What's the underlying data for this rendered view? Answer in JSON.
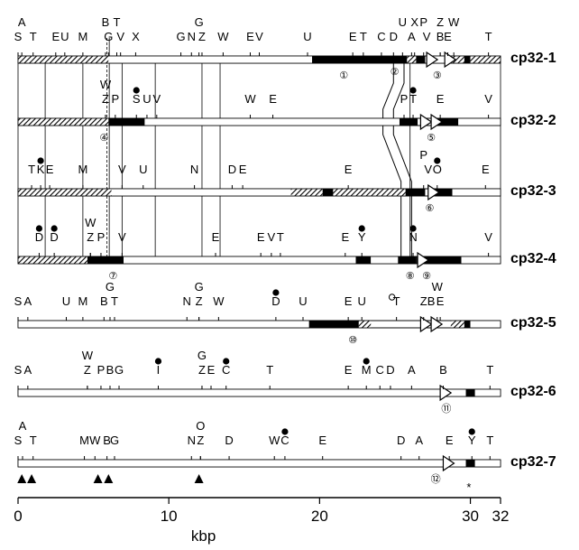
{
  "plasmids": [
    {
      "name": "cp32-1",
      "sites": [
        {
          "s": "A",
          "x": 0.25,
          "t": 1
        },
        {
          "s": "S",
          "x": 0,
          "t": 2
        },
        {
          "s": "T",
          "x": 1.0,
          "t": 2
        },
        {
          "s": "E",
          "x": 2.5,
          "t": 2
        },
        {
          "s": "U",
          "x": 3.1,
          "t": 2
        },
        {
          "s": "M",
          "x": 4.3,
          "t": 2
        },
        {
          "s": "B",
          "x": 5.8,
          "t": 1
        },
        {
          "s": "G",
          "x": 6.0,
          "t": 2
        },
        {
          "s": "T",
          "x": 6.55,
          "t": 1
        },
        {
          "s": "V",
          "x": 6.8,
          "t": 2
        },
        {
          "s": "X",
          "x": 7.8,
          "t": 2
        },
        {
          "s": "G",
          "x": 12.0,
          "t": 1
        },
        {
          "s": "G",
          "x": 10.8,
          "t": 2
        },
        {
          "s": "N",
          "x": 11.5,
          "t": 2
        },
        {
          "s": "Z",
          "x": 12.2,
          "t": 2
        },
        {
          "s": "W",
          "x": 13.6,
          "t": 2
        },
        {
          "s": "E",
          "x": 15.4,
          "t": 2
        },
        {
          "s": "V",
          "x": 16.0,
          "t": 2
        },
        {
          "s": "U",
          "x": 19.2,
          "t": 2
        },
        {
          "s": "E",
          "x": 22.2,
          "t": 2
        },
        {
          "s": "T",
          "x": 22.9,
          "t": 2
        },
        {
          "s": "C",
          "x": 24.1,
          "t": 2
        },
        {
          "s": "D",
          "x": 24.9,
          "t": 2
        },
        {
          "s": "U",
          "x": 25.5,
          "t": 1
        },
        {
          "s": "X",
          "x": 26.3,
          "t": 1
        },
        {
          "s": "A",
          "x": 26.1,
          "t": 2
        },
        {
          "s": "P",
          "x": 26.9,
          "t": 1
        },
        {
          "s": "V",
          "x": 27.1,
          "t": 2
        },
        {
          "s": "Z",
          "x": 28.0,
          "t": 1
        },
        {
          "s": "B",
          "x": 28.0,
          "t": 2
        },
        {
          "s": "E",
          "x": 28.5,
          "t": 2
        },
        {
          "s": "W",
          "x": 28.9,
          "t": 1
        },
        {
          "s": "T",
          "x": 31.2,
          "t": 2
        }
      ],
      "segs": [
        [
          0,
          6.0,
          "h"
        ],
        [
          6.0,
          19.5,
          "w"
        ],
        [
          19.5,
          25.8,
          "b"
        ],
        [
          25.8,
          26.4,
          "h"
        ],
        [
          26.4,
          27.0,
          "b"
        ],
        [
          27.4,
          28.6,
          "w"
        ],
        [
          28.6,
          29.6,
          "h"
        ],
        [
          29.6,
          30.0,
          "b"
        ],
        [
          30.0,
          32.0,
          "h"
        ]
      ],
      "arrows": [
        27.1,
        28.3
      ],
      "circled": [
        [
          "①",
          21.6
        ],
        [
          "③",
          27.8
        ]
      ]
    },
    {
      "name": "cp32-2",
      "sites": [
        {
          "s": "W",
          "x": 5.8,
          "t": 1
        },
        {
          "s": "Z",
          "x": 5.8,
          "t": 2
        },
        {
          "s": "P",
          "x": 6.45,
          "t": 2
        },
        {
          "s": "S",
          "x": 7.85,
          "t": 2,
          "dot": true
        },
        {
          "s": "U",
          "x": 8.55,
          "t": 2
        },
        {
          "s": "V",
          "x": 9.2,
          "t": 2
        },
        {
          "s": "W",
          "x": 15.4,
          "t": 2
        },
        {
          "s": "E",
          "x": 16.9,
          "t": 2
        },
        {
          "s": "P",
          "x": 25.6,
          "t": 2
        },
        {
          "s": "T",
          "x": 26.2,
          "t": 2,
          "dot": true
        },
        {
          "s": "E",
          "x": 28.0,
          "t": 2
        },
        {
          "s": "V",
          "x": 31.2,
          "t": 2
        }
      ],
      "segs": [
        [
          0,
          6.0,
          "h"
        ],
        [
          6.0,
          8.4,
          "b"
        ],
        [
          8.4,
          25.3,
          "w"
        ],
        [
          25.3,
          26.5,
          "b"
        ],
        [
          27.8,
          29.2,
          "b"
        ],
        [
          29.2,
          32.0,
          "w"
        ]
      ],
      "arrows": [
        26.7,
        27.4
      ],
      "circled": [
        [
          "④",
          5.7
        ],
        [
          "⑤",
          27.4
        ]
      ]
    },
    {
      "name": "cp32-3",
      "sites": [
        {
          "s": "T",
          "x": 0.9,
          "t": 2
        },
        {
          "s": "K",
          "x": 1.5,
          "t": 2,
          "dot": true
        },
        {
          "s": "E",
          "x": 2.1,
          "t": 2
        },
        {
          "s": "M",
          "x": 4.3,
          "t": 2
        },
        {
          "s": "V",
          "x": 6.9,
          "t": 2
        },
        {
          "s": "U",
          "x": 8.3,
          "t": 2
        },
        {
          "s": "N",
          "x": 11.7,
          "t": 2
        },
        {
          "s": "D",
          "x": 14.2,
          "t": 2
        },
        {
          "s": "E",
          "x": 14.9,
          "t": 2
        },
        {
          "s": "E",
          "x": 21.9,
          "t": 2
        },
        {
          "s": "P",
          "x": 26.9,
          "t": 1
        },
        {
          "s": "V",
          "x": 27.2,
          "t": 2
        },
        {
          "s": "O",
          "x": 27.8,
          "t": 2,
          "dot": true
        },
        {
          "s": "E",
          "x": 31.0,
          "t": 2
        }
      ],
      "segs": [
        [
          0,
          6.2,
          "h"
        ],
        [
          6.2,
          18.1,
          "w"
        ],
        [
          18.1,
          20.2,
          "h"
        ],
        [
          20.2,
          20.9,
          "b"
        ],
        [
          20.9,
          25.7,
          "h"
        ],
        [
          25.7,
          27.0,
          "b"
        ],
        [
          27.6,
          28.8,
          "b"
        ],
        [
          28.8,
          32.0,
          "w"
        ]
      ],
      "arrows": [
        27.2
      ],
      "circled": [
        [
          "⑥",
          27.3
        ]
      ]
    },
    {
      "name": "cp32-4",
      "sites": [
        {
          "s": "D",
          "x": 1.4,
          "t": 2,
          "dot": true
        },
        {
          "s": "D",
          "x": 2.4,
          "t": 2,
          "dot": true
        },
        {
          "s": "W",
          "x": 4.8,
          "t": 1
        },
        {
          "s": "Z",
          "x": 4.8,
          "t": 2
        },
        {
          "s": "P",
          "x": 5.5,
          "t": 2
        },
        {
          "s": "V",
          "x": 6.9,
          "t": 2
        },
        {
          "s": "E",
          "x": 13.1,
          "t": 2
        },
        {
          "s": "E",
          "x": 16.1,
          "t": 2
        },
        {
          "s": "V",
          "x": 16.8,
          "t": 2
        },
        {
          "s": "T",
          "x": 17.4,
          "t": 2
        },
        {
          "s": "E",
          "x": 21.7,
          "t": 2
        },
        {
          "s": "Y",
          "x": 22.8,
          "t": 2,
          "dot": true
        },
        {
          "s": "N",
          "x": 26.2,
          "t": 2,
          "dot": true
        },
        {
          "s": "V",
          "x": 31.2,
          "t": 2
        }
      ],
      "segs": [
        [
          0,
          4.6,
          "h"
        ],
        [
          4.6,
          7.0,
          "b"
        ],
        [
          7.0,
          22.4,
          "w"
        ],
        [
          22.4,
          23.4,
          "b"
        ],
        [
          23.4,
          25.2,
          "w"
        ],
        [
          25.2,
          26.4,
          "b"
        ],
        [
          26.4,
          29.4,
          "b"
        ],
        [
          29.4,
          32.0,
          "w"
        ]
      ],
      "arrows": [
        26.5
      ],
      "circled": [
        [
          "⑦",
          6.3
        ],
        [
          "⑧",
          26.0
        ],
        [
          "⑨",
          27.1
        ]
      ]
    },
    {
      "name": "cp32-5",
      "sites": [
        {
          "s": "S",
          "x": 0,
          "t": 2
        },
        {
          "s": "A",
          "x": 0.65,
          "t": 2
        },
        {
          "s": "U",
          "x": 3.2,
          "t": 2
        },
        {
          "s": "M",
          "x": 4.3,
          "t": 2
        },
        {
          "s": "B",
          "x": 5.7,
          "t": 2
        },
        {
          "s": "G",
          "x": 6.1,
          "t": 1
        },
        {
          "s": "T",
          "x": 6.4,
          "t": 2
        },
        {
          "s": "G",
          "x": 12.0,
          "t": 1
        },
        {
          "s": "N",
          "x": 11.2,
          "t": 2
        },
        {
          "s": "Z",
          "x": 12.0,
          "t": 2
        },
        {
          "s": "W",
          "x": 13.3,
          "t": 2
        },
        {
          "s": "D",
          "x": 17.1,
          "t": 2,
          "dot": true
        },
        {
          "s": "U",
          "x": 18.9,
          "t": 2
        },
        {
          "s": "E",
          "x": 21.9,
          "t": 2
        },
        {
          "s": "U",
          "x": 22.8,
          "t": 2
        },
        {
          "s": "T",
          "x": 25.1,
          "t": 2,
          "circle": true
        },
        {
          "s": "Z",
          "x": 26.9,
          "t": 2
        },
        {
          "s": "B",
          "x": 27.4,
          "t": 2
        },
        {
          "s": "E",
          "x": 28.0,
          "t": 2
        },
        {
          "s": "W",
          "x": 27.8,
          "t": 1
        }
      ],
      "segs": [
        [
          0,
          19.3,
          "w"
        ],
        [
          19.3,
          22.6,
          "b"
        ],
        [
          22.6,
          23.4,
          "h"
        ],
        [
          28.7,
          29.6,
          "h"
        ],
        [
          29.6,
          30.0,
          "b"
        ],
        [
          30.0,
          32.0,
          "w"
        ]
      ],
      "arrows": [
        26.7,
        27.4
      ],
      "circled": [
        [
          "⑩",
          22.2
        ]
      ]
    },
    {
      "name": "cp32-6",
      "sites": [
        {
          "s": "S",
          "x": 0,
          "t": 2
        },
        {
          "s": "A",
          "x": 0.65,
          "t": 2
        },
        {
          "s": "W",
          "x": 4.6,
          "t": 1
        },
        {
          "s": "Z",
          "x": 4.6,
          "t": 2
        },
        {
          "s": "P",
          "x": 5.5,
          "t": 2
        },
        {
          "s": "B",
          "x": 6.1,
          "t": 2
        },
        {
          "s": "G",
          "x": 6.7,
          "t": 2
        },
        {
          "s": "I",
          "x": 9.3,
          "t": 2,
          "dot": true
        },
        {
          "s": "G",
          "x": 12.2,
          "t": 1
        },
        {
          "s": "Z",
          "x": 12.2,
          "t": 2
        },
        {
          "s": "E",
          "x": 12.8,
          "t": 2
        },
        {
          "s": "C",
          "x": 13.8,
          "t": 2,
          "dot": true
        },
        {
          "s": "T",
          "x": 16.7,
          "t": 2
        },
        {
          "s": "E",
          "x": 21.9,
          "t": 2
        },
        {
          "s": "M",
          "x": 23.1,
          "t": 2,
          "dot": true
        },
        {
          "s": "C",
          "x": 24.0,
          "t": 2
        },
        {
          "s": "D",
          "x": 24.7,
          "t": 2
        },
        {
          "s": "A",
          "x": 26.1,
          "t": 2
        },
        {
          "s": "B",
          "x": 28.2,
          "t": 2
        },
        {
          "s": "T",
          "x": 31.3,
          "t": 2
        }
      ],
      "segs": [
        [
          0,
          32.0,
          "w"
        ],
        [
          29.7,
          30.3,
          "b"
        ]
      ],
      "arrows": [
        28.0
      ],
      "circled": [
        [
          "⑪",
          28.4
        ]
      ]
    },
    {
      "name": "cp32-7",
      "sites": [
        {
          "s": "A",
          "x": 0.3,
          "t": 1
        },
        {
          "s": "S",
          "x": 0,
          "t": 2
        },
        {
          "s": "T",
          "x": 1.0,
          "t": 2
        },
        {
          "s": "M",
          "x": 4.4,
          "t": 2
        },
        {
          "s": "W",
          "x": 5.1,
          "t": 2
        },
        {
          "s": "B",
          "x": 5.9,
          "t": 2
        },
        {
          "s": "G",
          "x": 6.4,
          "t": 2
        },
        {
          "s": "N",
          "x": 11.5,
          "t": 2
        },
        {
          "s": "Z",
          "x": 12.1,
          "t": 2
        },
        {
          "s": "O",
          "x": 12.1,
          "t": 1
        },
        {
          "s": "D",
          "x": 14.0,
          "t": 2
        },
        {
          "s": "W",
          "x": 17.0,
          "t": 2
        },
        {
          "s": "C",
          "x": 17.7,
          "t": 2,
          "dot": true
        },
        {
          "s": "E",
          "x": 20.2,
          "t": 2
        },
        {
          "s": "D",
          "x": 25.4,
          "t": 2
        },
        {
          "s": "A",
          "x": 26.6,
          "t": 2
        },
        {
          "s": "E",
          "x": 28.6,
          "t": 2
        },
        {
          "s": "Y",
          "x": 30.1,
          "t": 2,
          "dot": true
        },
        {
          "s": "T",
          "x": 31.3,
          "t": 2
        }
      ],
      "segs": [
        [
          0,
          32.0,
          "w"
        ],
        [
          29.7,
          30.3,
          "b"
        ]
      ],
      "arrows": [
        28.2
      ],
      "circled": [
        [
          "⑫",
          27.7
        ]
      ],
      "triangles": [
        0.25,
        0.9,
        5.3,
        6.0,
        12.0
      ],
      "asterisk": 29.9
    }
  ],
  "scale": {
    "ticks": [
      {
        "v": 0,
        "label": "0"
      },
      {
        "v": 10,
        "label": "10"
      },
      {
        "v": 20,
        "label": "20"
      },
      {
        "v": 30,
        "label": "30"
      },
      {
        "v": 32,
        "label": "32"
      }
    ],
    "unit": "kbp"
  },
  "ui": {
    "ink": "#000000"
  }
}
